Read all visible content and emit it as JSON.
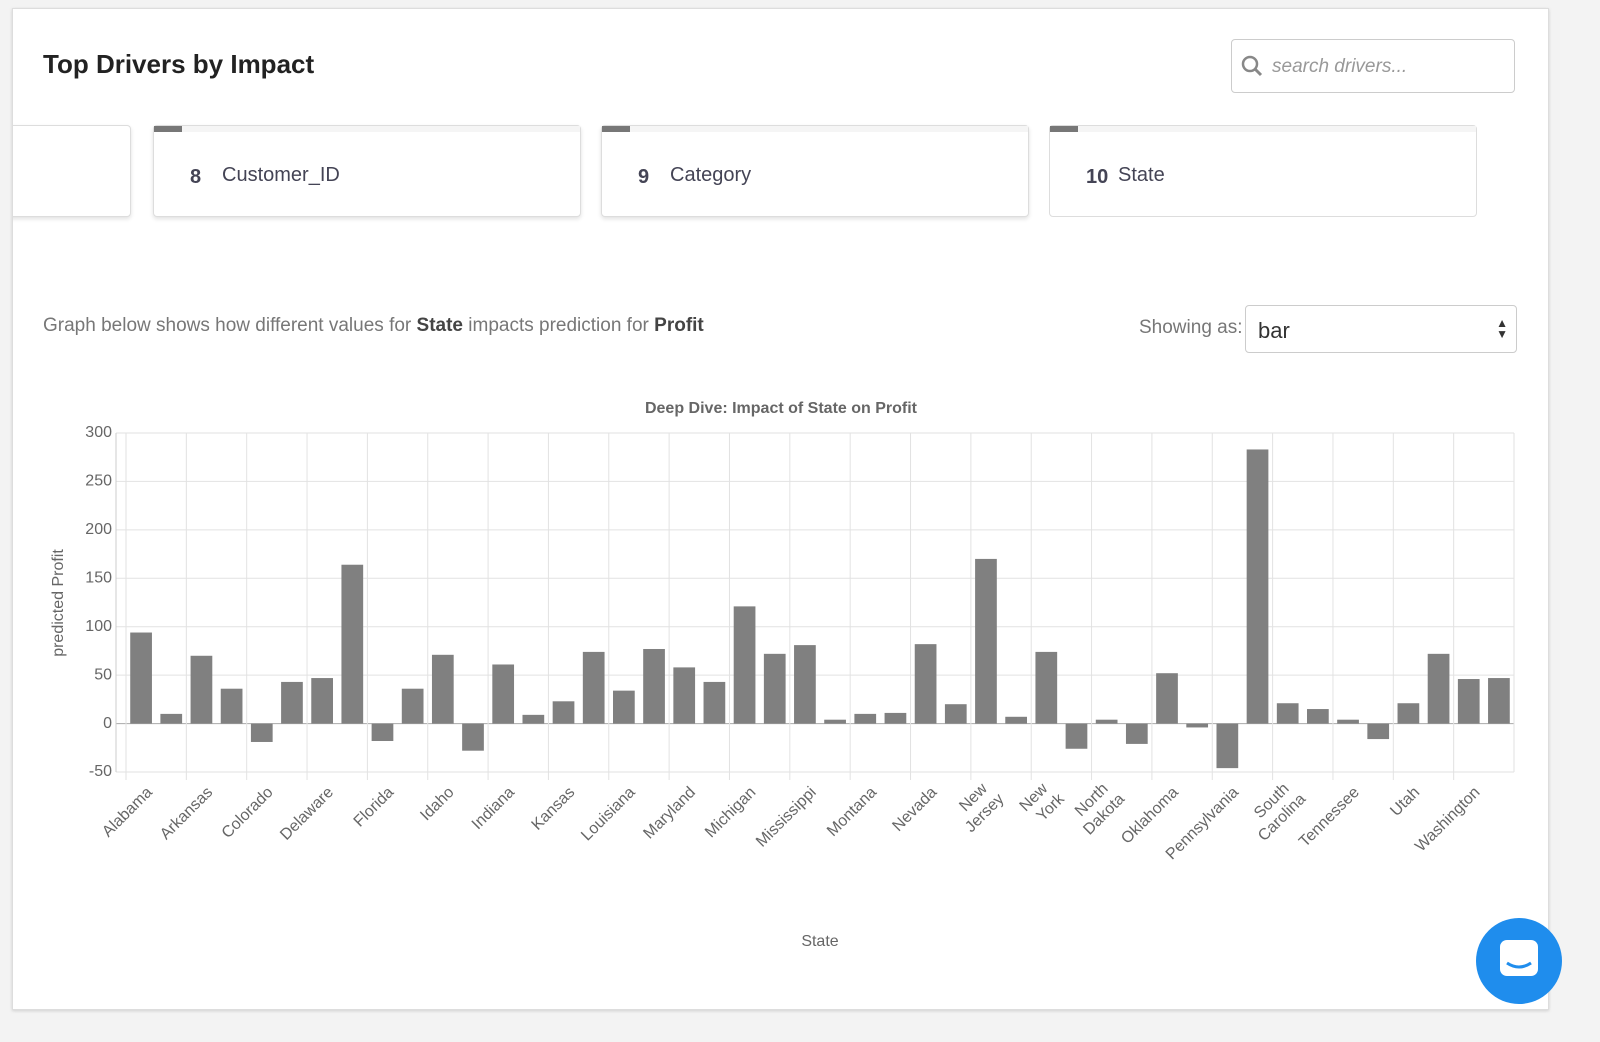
{
  "header": {
    "title": "Top Drivers by Impact",
    "search_placeholder": "search drivers..."
  },
  "drivers": [
    {
      "rank": "8",
      "name": "Customer_ID"
    },
    {
      "rank": "9",
      "name": "Category"
    },
    {
      "rank": "10",
      "name": "State"
    }
  ],
  "description": {
    "prefix": "Graph below shows how different values for",
    "feature": "State",
    "middle": "impacts prediction for",
    "target": "Profit"
  },
  "view": {
    "label": "Showing as:",
    "selected": "bar"
  },
  "chart_data": {
    "type": "bar",
    "title": "Deep Dive: Impact of State on Profit",
    "x_label": "State",
    "y_label": "predicted Profit",
    "categories": [
      "Alabama",
      null,
      "Arkansas",
      null,
      "Colorado",
      null,
      "Delaware",
      null,
      "Florida",
      null,
      "Idaho",
      null,
      "Indiana",
      null,
      "Kansas",
      null,
      "Louisiana",
      null,
      "Maryland",
      null,
      "Michigan",
      null,
      "Mississippi",
      null,
      "Montana",
      null,
      "Nevada",
      null,
      "New Jersey",
      null,
      "New York",
      null,
      "North Dakota",
      null,
      "Oklahoma",
      null,
      "Pennsylvania",
      null,
      "South Carolina",
      null,
      "Tennessee",
      null,
      "Utah",
      null,
      "Washington",
      null
    ],
    "values": [
      94,
      10,
      70,
      36,
      -19,
      43,
      47,
      164,
      -18,
      36,
      71,
      -28,
      61,
      9,
      23,
      74,
      34,
      77,
      58,
      43,
      121,
      72,
      81,
      4,
      10,
      11,
      82,
      20,
      170,
      7,
      74,
      -26,
      4,
      -21,
      52,
      -4,
      -46,
      283,
      21,
      15,
      4,
      -16,
      21,
      72,
      46,
      47
    ],
    "color": "#808080",
    "ylim": [
      -50,
      300
    ],
    "yticks": [
      -50,
      0,
      50,
      100,
      150,
      200,
      250,
      300
    ],
    "grid": true
  }
}
